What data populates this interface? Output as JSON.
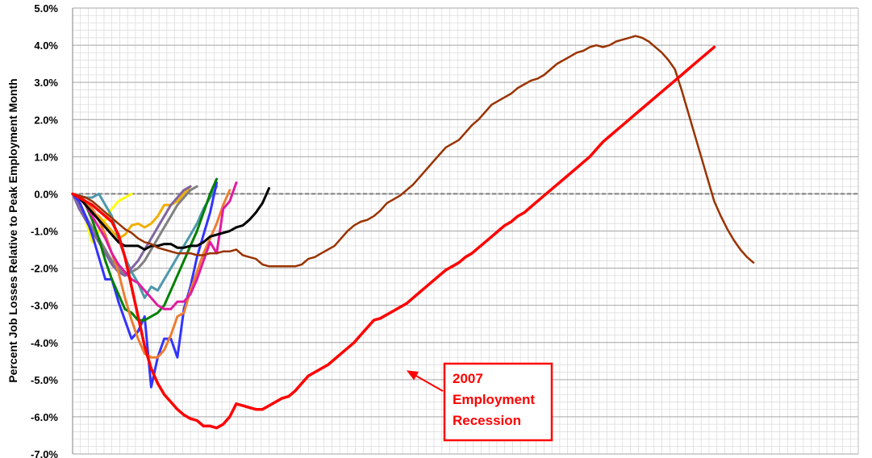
{
  "chart_data": {
    "type": "line",
    "title": "",
    "ylabel": "Percent Job Losses Relative to Peak Employment Month",
    "xlabel": "",
    "ylim": [
      -7.0,
      5.0
    ],
    "y_ticks": [
      "5.0%",
      "4.0%",
      "3.0%",
      "2.0%",
      "1.0%",
      "0.0%",
      "-1.0%",
      "-2.0%",
      "-3.0%",
      "-4.0%",
      "-5.0%",
      "-6.0%",
      "-7.0%"
    ],
    "y_tick_values": [
      5,
      4,
      3,
      2,
      1,
      0,
      -1,
      -2,
      -3,
      -4,
      -5,
      -6,
      -7
    ],
    "x_months": 120,
    "grid": true,
    "legend": "none",
    "annotation": {
      "lines": [
        "2007",
        "Employment",
        "Recession"
      ],
      "color": "#ff0000",
      "points_to_month": 51,
      "points_to_value": -4.75
    },
    "series": [
      {
        "color": "#ffff00",
        "width": 3,
        "values": [
          0,
          -0.3,
          -0.7,
          -1.3,
          -1.0,
          -0.7,
          -0.4,
          -0.2,
          -0.1,
          0.0
        ]
      },
      {
        "color": "#f0b000",
        "width": 3,
        "values": [
          0,
          -0.1,
          -0.3,
          -0.5,
          -0.6,
          -0.8,
          -1.0,
          -1.2,
          -1.1,
          -0.85,
          -0.8,
          -0.9,
          -0.8,
          -0.6,
          -0.3,
          -0.3,
          -0.2,
          0.0,
          0.2
        ]
      },
      {
        "color": "#808080",
        "width": 3,
        "values": [
          0,
          -0.3,
          -0.6,
          -0.9,
          -1.2,
          -1.5,
          -1.8,
          -2.0,
          -2.2,
          -2.1,
          -2.0,
          -1.8,
          -1.5,
          -1.2,
          -0.9,
          -0.6,
          -0.3,
          -0.1,
          0.1,
          0.2
        ]
      },
      {
        "color": "#4d97ab",
        "width": 3,
        "values": [
          0,
          -0.05,
          -0.1,
          -0.1,
          -0.0,
          -0.3,
          -0.6,
          -1.2,
          -1.7,
          -2.1,
          -2.4,
          -2.8,
          -2.5,
          -2.6,
          -2.3,
          -2.0,
          -1.7,
          -1.4,
          -1.1,
          -0.8,
          -0.4,
          -0.1,
          0.2
        ]
      },
      {
        "color": "#8064a2",
        "width": 3,
        "values": [
          0,
          -0.4,
          -0.7,
          -1.0,
          -1.3,
          -1.6,
          -1.9,
          -2.1,
          -2.2,
          -2.0,
          -1.8,
          -1.5,
          -1.2,
          -0.9,
          -0.6,
          -0.3,
          -0.1,
          0.1,
          0.2
        ]
      },
      {
        "color": "#3333ff",
        "width": 3,
        "values": [
          0,
          -0.2,
          -0.6,
          -1.1,
          -1.7,
          -2.3,
          -2.3,
          -2.9,
          -3.4,
          -3.9,
          -3.7,
          -3.3,
          -5.2,
          -4.4,
          -3.9,
          -3.9,
          -4.4,
          -3.1,
          -2.5,
          -1.7,
          -1.1,
          -0.5,
          0.3
        ]
      },
      {
        "color": "#008000",
        "width": 3,
        "values": [
          0,
          -0.1,
          -0.3,
          -0.7,
          -1.2,
          -1.8,
          -2.3,
          -2.7,
          -3.1,
          -3.2,
          -3.4,
          -3.4,
          -3.3,
          -3.2,
          -3.0,
          -2.6,
          -2.2,
          -1.8,
          -1.4,
          -1.0,
          -0.5,
          0.0,
          0.4
        ]
      },
      {
        "color": "#ed7d31",
        "width": 3,
        "values": [
          0,
          -0.05,
          -0.2,
          -0.4,
          -0.7,
          -1.1,
          -1.6,
          -2.1,
          -2.8,
          -3.4,
          -3.9,
          -4.3,
          -4.4,
          -4.4,
          -4.2,
          -3.8,
          -3.3,
          -3.2,
          -2.6,
          -2.1,
          -1.6,
          -1.2,
          -0.8,
          -0.3,
          0.1
        ]
      },
      {
        "color": "#e01ca0",
        "width": 3,
        "values": [
          0,
          -0.1,
          -0.3,
          -0.6,
          -0.9,
          -1.2,
          -1.6,
          -1.9,
          -2.1,
          -2.3,
          -2.4,
          -2.6,
          -2.8,
          -3.0,
          -3.1,
          -3.1,
          -2.9,
          -2.9,
          -2.7,
          -2.3,
          -1.8,
          -1.3,
          -1.6,
          -0.4,
          -0.2,
          0.3
        ]
      },
      {
        "color": "#000000",
        "width": 3,
        "values": [
          0,
          -0.1,
          -0.3,
          -0.5,
          -0.7,
          -0.9,
          -1.1,
          -1.3,
          -1.4,
          -1.4,
          -1.4,
          -1.5,
          -1.4,
          -1.4,
          -1.35,
          -1.35,
          -1.45,
          -1.45,
          -1.4,
          -1.4,
          -1.3,
          -1.15,
          -1.1,
          -1.05,
          -1.0,
          -0.9,
          -0.85,
          -0.7,
          -0.5,
          -0.25,
          0.15
        ]
      },
      {
        "color": "#993300",
        "width": 2.5,
        "values": [
          0,
          -0.05,
          -0.1,
          -0.2,
          -0.35,
          -0.5,
          -0.65,
          -0.8,
          -0.95,
          -1.05,
          -1.2,
          -1.3,
          -1.35,
          -1.45,
          -1.5,
          -1.55,
          -1.6,
          -1.6,
          -1.6,
          -1.65,
          -1.65,
          -1.6,
          -1.6,
          -1.55,
          -1.55,
          -1.5,
          -1.65,
          -1.7,
          -1.75,
          -1.9,
          -1.95,
          -1.95,
          -1.95,
          -1.95,
          -1.95,
          -1.9,
          -1.75,
          -1.7,
          -1.6,
          -1.5,
          -1.4,
          -1.2,
          -1.0,
          -0.85,
          -0.75,
          -0.7,
          -0.6,
          -0.45,
          -0.25,
          -0.15,
          -0.05,
          0.1,
          0.25,
          0.45,
          0.65,
          0.85,
          1.05,
          1.25,
          1.35,
          1.45,
          1.65,
          1.85,
          2.0,
          2.2,
          2.4,
          2.5,
          2.6,
          2.7,
          2.85,
          2.95,
          3.05,
          3.1,
          3.2,
          3.35,
          3.5,
          3.6,
          3.7,
          3.8,
          3.85,
          3.95,
          4.0,
          3.95,
          4.0,
          4.1,
          4.15,
          4.2,
          4.25,
          4.2,
          4.1,
          3.95,
          3.8,
          3.6,
          3.35,
          2.8,
          2.2,
          1.6,
          1.0,
          0.4,
          -0.2,
          -0.6,
          -0.95,
          -1.25,
          -1.5,
          -1.7,
          -1.85
        ]
      },
      {
        "color": "#ff0000",
        "width": 3.5,
        "values": [
          0,
          -0.1,
          -0.2,
          -0.3,
          -0.45,
          -0.6,
          -0.75,
          -1.1,
          -1.7,
          -2.5,
          -3.3,
          -4.1,
          -4.7,
          -5.1,
          -5.4,
          -5.6,
          -5.8,
          -5.95,
          -6.05,
          -6.1,
          -6.25,
          -6.25,
          -6.3,
          -6.2,
          -6.0,
          -5.65,
          -5.7,
          -5.75,
          -5.8,
          -5.8,
          -5.7,
          -5.6,
          -5.5,
          -5.45,
          -5.3,
          -5.1,
          -4.9,
          -4.8,
          -4.7,
          -4.6,
          -4.45,
          -4.3,
          -4.15,
          -4.0,
          -3.8,
          -3.6,
          -3.4,
          -3.35,
          -3.25,
          -3.15,
          -3.05,
          -2.95,
          -2.8,
          -2.65,
          -2.5,
          -2.35,
          -2.2,
          -2.05,
          -1.95,
          -1.85,
          -1.7,
          -1.6,
          -1.45,
          -1.3,
          -1.15,
          -1.0,
          -0.85,
          -0.75,
          -0.6,
          -0.5,
          -0.35,
          -0.2,
          -0.05,
          0.1,
          0.25,
          0.4,
          0.55,
          0.7,
          0.85,
          1.0,
          1.2,
          1.4,
          1.55,
          1.7,
          1.85,
          2.0,
          2.15,
          2.3,
          2.45,
          2.6,
          2.75,
          2.9,
          3.05,
          3.2,
          3.35,
          3.5,
          3.65,
          3.8,
          3.95
        ]
      }
    ]
  }
}
